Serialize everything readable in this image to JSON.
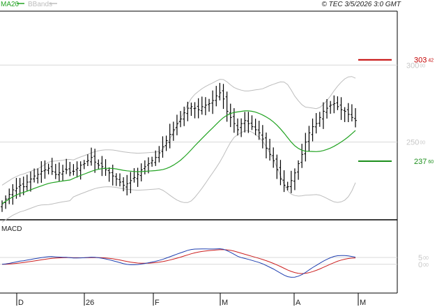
{
  "header": {
    "legend_ma": "MA20",
    "legend_bb": "BBands",
    "copyright": "© TEC 3/5/2026 3:0 GMT"
  },
  "colors": {
    "candles": "#000000",
    "ma": "#22a322",
    "bbands": "#bdbdbd",
    "macd_line": "#1f3fb0",
    "signal_line": "#cc1f1f",
    "resistance": "#c40000",
    "support": "#1d8f1d"
  },
  "chart_data": [
    {
      "type": "candlestick",
      "title": "",
      "x_ticks": [
        "D",
        "26",
        "F",
        "M",
        "A",
        "M"
      ],
      "y_ticks": [
        {
          "int": "300",
          "dec": "00"
        },
        {
          "int": "250",
          "dec": "00"
        }
      ],
      "ylim": [
        200,
        335
      ],
      "levels": [
        {
          "name": "resistance",
          "int": "303",
          "dec": "42",
          "value": 303.42
        },
        {
          "name": "support",
          "int": "237",
          "dec": "60",
          "value": 237.6
        }
      ],
      "closes": [
        210,
        213,
        216,
        219,
        220,
        222,
        221,
        224,
        226,
        228,
        229,
        231,
        232,
        233,
        231,
        229,
        230,
        231,
        232,
        230,
        231,
        233,
        235,
        236,
        238,
        240,
        237,
        235,
        234,
        232,
        230,
        228,
        226,
        224,
        222,
        223,
        225,
        227,
        229,
        232,
        234,
        236,
        238,
        240,
        243,
        247,
        251,
        255,
        258,
        262,
        265,
        269,
        272,
        273,
        272,
        271,
        273,
        274,
        275,
        277,
        280,
        282,
        278,
        270,
        266,
        262,
        258,
        262,
        264,
        262,
        260,
        258,
        256,
        252,
        246,
        242,
        238,
        232,
        226,
        222,
        221,
        225,
        230,
        236,
        242,
        250,
        256,
        260,
        262,
        266,
        270,
        272,
        274,
        275,
        273,
        271,
        270,
        268,
        266,
        264
      ]
    },
    {
      "type": "line",
      "title": "MACD",
      "y_ticks": [
        {
          "int": "5",
          "dec": "00"
        },
        {
          "int": "0",
          "dec": "00"
        }
      ],
      "ylim": [
        -18,
        29
      ],
      "series": [
        {
          "name": "MACD"
        },
        {
          "name": "Signal"
        }
      ]
    }
  ]
}
